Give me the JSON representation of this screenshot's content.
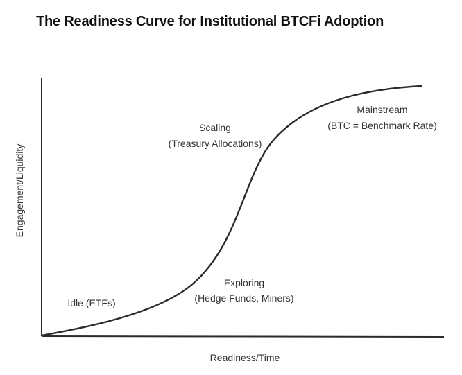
{
  "title": "The Readiness Curve for Institutional BTCFi Adoption",
  "axes": {
    "x_label": "Readiness/Time",
    "y_label": "Engagement/Liquidity"
  },
  "stages": [
    {
      "name": "Idle (ETFs)",
      "detail": ""
    },
    {
      "name": "Exploring",
      "detail": "(Hedge Funds, Miners)"
    },
    {
      "name": "Scaling",
      "detail": "(Treasury Allocations)"
    },
    {
      "name": "Mainstream",
      "detail": "(BTC = Benchmark Rate)"
    }
  ],
  "curve_shape": "s-curve"
}
